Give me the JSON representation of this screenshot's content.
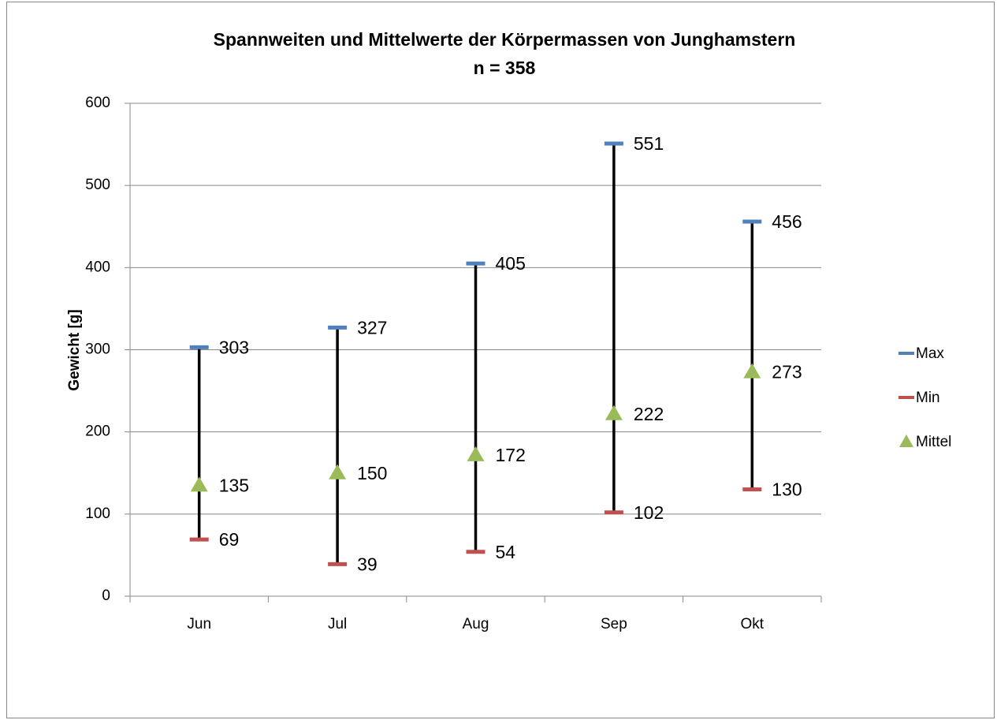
{
  "chart_data": {
    "type": "hilo",
    "title": "Spannweiten und Mittelwerte der Körpermassen von Junghamstern",
    "subtitle": "n = 358",
    "y_label": "Gewicht [g]",
    "categories": [
      "Jun",
      "Jul",
      "Aug",
      "Sep",
      "Okt"
    ],
    "series": [
      {
        "name": "Max",
        "color": "#4f81bd",
        "marker": "dash",
        "values": [
          303,
          327,
          405,
          551,
          456
        ]
      },
      {
        "name": "Min",
        "color": "#c0504d",
        "marker": "dash",
        "values": [
          69,
          39,
          54,
          102,
          130
        ]
      },
      {
        "name": "Mittel",
        "color": "#9bbb59",
        "marker": "triangle",
        "values": [
          135,
          150,
          172,
          222,
          273
        ]
      }
    ],
    "ylim": [
      0,
      600
    ],
    "yticks": [
      0,
      100,
      200,
      300,
      400,
      500,
      600
    ],
    "grid": true,
    "legend": "right"
  }
}
